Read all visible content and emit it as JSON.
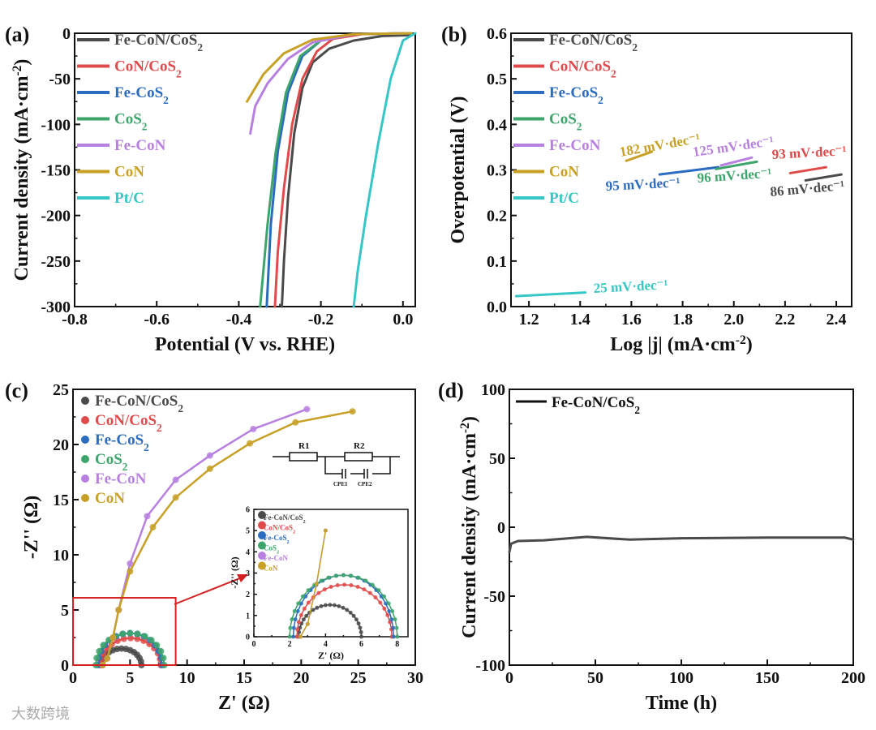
{
  "colors": {
    "Fe-CoN/CoS2": "#4a4a4a",
    "CoN/CoS2": "#e04a4a",
    "Fe-CoS2": "#2b6cc0",
    "CoS2": "#3da56b",
    "Fe-CoN": "#b67fe0",
    "CoN": "#c8a026",
    "Pt/C": "#36c6c6"
  },
  "watermark": "大数跨境",
  "chart_data": [
    {
      "panel": "(a)",
      "type": "line",
      "xlabel": "Potential (V vs. RHE)",
      "ylabel": "Current density (mA·cm⁻²)",
      "xlim": [
        -0.8,
        0.03
      ],
      "ylim": [
        -300,
        0
      ],
      "xticks": [
        -0.8,
        -0.6,
        -0.4,
        -0.2,
        0.0
      ],
      "xtick_labels": [
        "-0.8",
        "-0.6",
        "-0.4",
        "-0.2",
        "0.0"
      ],
      "yticks": [
        0,
        -50,
        -100,
        -150,
        -200,
        -250,
        -300
      ],
      "ytick_labels": [
        "0",
        "-50",
        "-100",
        "-150",
        "-200",
        "-250",
        "-300"
      ],
      "legend": [
        "Fe-CoN/CoS₂",
        "CoN/CoS₂",
        "Fe-CoS₂",
        "CoS₂",
        "Fe-CoN",
        "CoN",
        "Pt/C"
      ],
      "series": [
        {
          "name": "Fe-CoN/CoS2",
          "points": [
            [
              0.02,
              -2
            ],
            [
              -0.05,
              -3
            ],
            [
              -0.12,
              -8
            ],
            [
              -0.18,
              -17
            ],
            [
              -0.22,
              -32
            ],
            [
              -0.245,
              -60
            ],
            [
              -0.265,
              -110
            ],
            [
              -0.28,
              -180
            ],
            [
              -0.29,
              -250
            ],
            [
              -0.295,
              -300
            ]
          ]
        },
        {
          "name": "CoN/CoS2",
          "points": [
            [
              0.02,
              0
            ],
            [
              -0.1,
              -1
            ],
            [
              -0.17,
              -6
            ],
            [
              -0.21,
              -20
            ],
            [
              -0.245,
              -50
            ],
            [
              -0.27,
              -100
            ],
            [
              -0.29,
              -170
            ],
            [
              -0.305,
              -240
            ],
            [
              -0.312,
              -300
            ]
          ]
        },
        {
          "name": "Fe-CoS2",
          "points": [
            [
              0.02,
              0
            ],
            [
              -0.12,
              -1
            ],
            [
              -0.2,
              -8
            ],
            [
              -0.245,
              -25
            ],
            [
              -0.28,
              -65
            ],
            [
              -0.305,
              -130
            ],
            [
              -0.322,
              -210
            ],
            [
              -0.332,
              -300
            ]
          ]
        },
        {
          "name": "CoS2",
          "points": [
            [
              0.02,
              0
            ],
            [
              -0.12,
              -1
            ],
            [
              -0.2,
              -8
            ],
            [
              -0.25,
              -25
            ],
            [
              -0.285,
              -65
            ],
            [
              -0.31,
              -130
            ],
            [
              -0.33,
              -210
            ],
            [
              -0.348,
              -300
            ]
          ]
        },
        {
          "name": "Fe-CoN",
          "points": [
            [
              0.02,
              0
            ],
            [
              -0.12,
              -1
            ],
            [
              -0.22,
              -10
            ],
            [
              -0.28,
              -28
            ],
            [
              -0.33,
              -55
            ],
            [
              -0.36,
              -80
            ],
            [
              -0.372,
              -110
            ]
          ]
        },
        {
          "name": "CoN",
          "points": [
            [
              0.02,
              0
            ],
            [
              -0.12,
              -1
            ],
            [
              -0.22,
              -7
            ],
            [
              -0.29,
              -22
            ],
            [
              -0.34,
              -45
            ],
            [
              -0.38,
              -75
            ]
          ]
        },
        {
          "name": "Pt/C",
          "points": [
            [
              0.03,
              0
            ],
            [
              0.0,
              -8
            ],
            [
              -0.03,
              -50
            ],
            [
              -0.06,
              -120
            ],
            [
              -0.09,
              -200
            ],
            [
              -0.11,
              -260
            ],
            [
              -0.12,
              -300
            ]
          ]
        }
      ]
    },
    {
      "panel": "(b)",
      "type": "line",
      "xlabel": "Log |j| (mA·cm⁻²)",
      "ylabel": "Overpotential (V)",
      "xlim": [
        1.13,
        2.46
      ],
      "ylim": [
        0,
        0.6
      ],
      "xticks": [
        1.2,
        1.4,
        1.6,
        1.8,
        2.0,
        2.2,
        2.4
      ],
      "xtick_labels": [
        "1.2",
        "1.4",
        "1.6",
        "1.8",
        "2.0",
        "2.2",
        "2.4"
      ],
      "yticks": [
        0,
        0.1,
        0.2,
        0.3,
        0.4,
        0.5,
        0.6
      ],
      "ytick_labels": [
        "0.0",
        "0.1",
        "0.2",
        "0.3",
        "0.4",
        "0.5",
        "0.6"
      ],
      "legend": [
        "Fe-CoN/CoS₂",
        "CoN/CoS₂",
        "Fe-CoS₂",
        "CoS₂",
        "Fe-CoN",
        "CoN",
        "Pt/C"
      ],
      "series": [
        {
          "name": "Fe-CoN/CoS2",
          "points": [
            [
              2.28,
              0.277
            ],
            [
              2.42,
              0.29
            ]
          ],
          "annotation": "86 mV·dec⁻¹"
        },
        {
          "name": "CoN/CoS2",
          "points": [
            [
              2.22,
              0.293
            ],
            [
              2.36,
              0.306
            ]
          ],
          "annotation": "93 mV·dec⁻¹"
        },
        {
          "name": "Fe-CoS2",
          "points": [
            [
              1.71,
              0.29
            ],
            [
              1.94,
              0.306
            ]
          ],
          "annotation": "95 mV·dec⁻¹"
        },
        {
          "name": "CoS2",
          "points": [
            [
              1.93,
              0.302
            ],
            [
              2.09,
              0.318
            ]
          ],
          "annotation": "96 mV·dec⁻¹"
        },
        {
          "name": "Fe-CoN",
          "points": [
            [
              1.95,
              0.31
            ],
            [
              2.07,
              0.327
            ]
          ],
          "annotation": "125 mV·dec⁻¹"
        },
        {
          "name": "CoN",
          "points": [
            [
              1.58,
              0.32
            ],
            [
              1.68,
              0.34
            ]
          ],
          "annotation": "182 mV·dec⁻¹"
        },
        {
          "name": "Pt/C",
          "points": [
            [
              1.15,
              0.023
            ],
            [
              1.42,
              0.031
            ]
          ],
          "annotation": "25 mV·dec⁻¹"
        }
      ]
    },
    {
      "panel": "(c)",
      "type": "scatter",
      "xlabel": "Z' (Ω)",
      "ylabel": "-Z'' (Ω)",
      "xlim": [
        0,
        30
      ],
      "ylim": [
        0,
        25
      ],
      "xticks": [
        0,
        5,
        10,
        15,
        20,
        25,
        30
      ],
      "xtick_labels": [
        "0",
        "5",
        "10",
        "15",
        "20",
        "25",
        "30"
      ],
      "yticks": [
        0,
        5,
        10,
        15,
        20,
        25
      ],
      "ytick_labels": [
        "0",
        "5",
        "10",
        "15",
        "20",
        "25"
      ],
      "legend": [
        "Fe-CoN/CoS₂",
        "CoN/CoS₂",
        "Fe-CoS₂",
        "CoS₂",
        "Fe-CoN",
        "CoN"
      ],
      "circuit": {
        "r1": "R",
        "r1_sub": "1",
        "r2": "R",
        "r2_sub": "2",
        "cpe1": "CPE1",
        "cpe2": "CPE2"
      },
      "semicircles": [
        {
          "name": "Fe-CoN/CoS2",
          "start": 2.5,
          "end": 6.0,
          "peak": 1.5
        },
        {
          "name": "CoN/CoS2",
          "start": 2.4,
          "end": 7.7,
          "peak": 2.45
        },
        {
          "name": "Fe-CoS2",
          "start": 2.2,
          "end": 7.8,
          "peak": 2.9
        },
        {
          "name": "CoS2",
          "start": 2.0,
          "end": 8.0,
          "peak": 2.9
        }
      ],
      "series": [
        {
          "name": "Fe-CoN",
          "points": [
            [
              2.6,
              0
            ],
            [
              3,
              0.6
            ],
            [
              3.5,
              2.5
            ],
            [
              4,
              5
            ],
            [
              5,
              9.2
            ],
            [
              6.5,
              13.5
            ],
            [
              9,
              16.8
            ],
            [
              12,
              19
            ],
            [
              15.8,
              21.4
            ],
            [
              20.5,
              23.2
            ]
          ]
        },
        {
          "name": "CoN",
          "points": [
            [
              2.6,
              0
            ],
            [
              3,
              0.6
            ],
            [
              3.5,
              2.5
            ],
            [
              4,
              5
            ],
            [
              5,
              8.5
            ],
            [
              7,
              12.5
            ],
            [
              9,
              15.2
            ],
            [
              12,
              17.8
            ],
            [
              15.5,
              20.1
            ],
            [
              19.5,
              22
            ],
            [
              24.5,
              23
            ]
          ]
        }
      ],
      "inset": {
        "xlim": [
          0,
          8.6
        ],
        "ylim": [
          0,
          6
        ],
        "xticks": [
          0,
          2,
          4,
          6,
          8
        ],
        "xtick_labels": [
          "0",
          "2",
          "4",
          "6",
          "8"
        ],
        "yticks": [
          0,
          1,
          2,
          3,
          4,
          5,
          6
        ],
        "ytick_labels": [
          "0",
          "1",
          "2",
          "3",
          "4",
          "5",
          "6"
        ],
        "xlabel": "Z' (Ω)",
        "ylabel": "-Z'' (Ω)"
      }
    },
    {
      "panel": "(d)",
      "type": "line",
      "xlabel": "Time (h)",
      "ylabel": "Current density (mA·cm⁻²)",
      "xlim": [
        0,
        200
      ],
      "ylim": [
        -100,
        100
      ],
      "xticks": [
        0,
        50,
        100,
        150,
        200
      ],
      "xtick_labels": [
        "0",
        "50",
        "100",
        "150",
        "200"
      ],
      "yticks": [
        -100,
        -50,
        0,
        50,
        100
      ],
      "ytick_labels": [
        "-100",
        "-50",
        "0",
        "50",
        "100"
      ],
      "legend": [
        "Fe-CoN/CoS₂"
      ],
      "series": [
        {
          "name": "Fe-CoN/CoS2",
          "points": [
            [
              0,
              -18
            ],
            [
              1,
              -12
            ],
            [
              5,
              -10
            ],
            [
              20,
              -9.5
            ],
            [
              45,
              -7
            ],
            [
              70,
              -9
            ],
            [
              100,
              -8
            ],
            [
              150,
              -7.5
            ],
            [
              195,
              -7.5
            ],
            [
              200,
              -9
            ]
          ]
        }
      ]
    }
  ]
}
